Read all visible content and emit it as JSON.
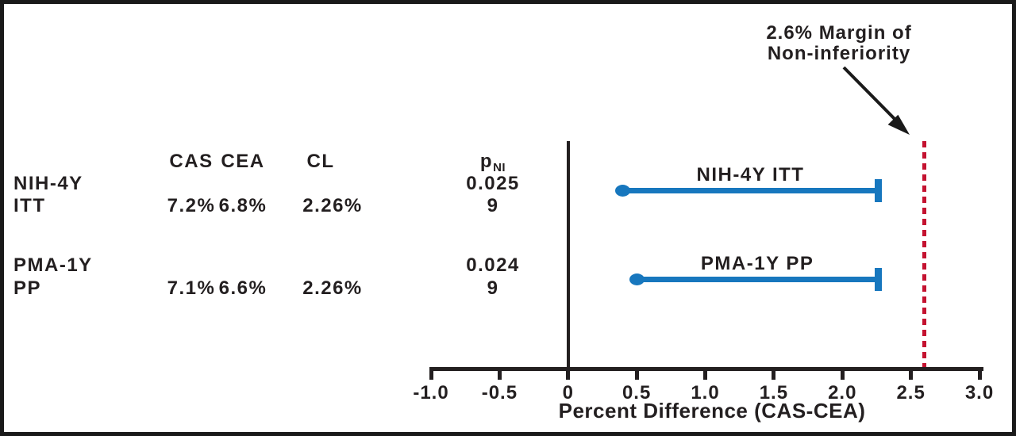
{
  "annotation": {
    "line1": "2.6% Margin of",
    "line2": "Non-inferiority"
  },
  "table": {
    "headers": {
      "cas": "CAS",
      "cea": "CEA",
      "cl": "CL",
      "p_base": "p",
      "p_sub": "NI"
    },
    "rows": [
      {
        "label_line1": "NIH-4Y",
        "label_line2": "ITT",
        "cas": "7.2%",
        "cea": "6.8%",
        "cl": "2.26%",
        "p_line1": "0.025",
        "p_line2": "9"
      },
      {
        "label_line1": "PMA-1Y",
        "label_line2": "PP",
        "cas": "7.1%",
        "cea": "6.6%",
        "cl": "2.26%",
        "p_line1": "0.024",
        "p_line2": "9"
      }
    ]
  },
  "chart_data": {
    "type": "forest",
    "xlabel": "Percent Difference (CAS-CEA)",
    "xlim": [
      -1.0,
      3.0
    ],
    "x_ticks": [
      -1.0,
      -0.5,
      0,
      0.5,
      1.0,
      1.5,
      2.0,
      2.5,
      3.0
    ],
    "x_tick_labels": [
      "-1.0",
      "-0.5",
      "0",
      "0.5",
      "1.0",
      "1.5",
      "2.0",
      "2.5",
      "3.0"
    ],
    "margin_line_x": 2.6,
    "margin_label": "2.6% Margin of Non-inferiority",
    "zero_reference_line": 0,
    "series": [
      {
        "name": "NIH-4Y ITT",
        "point_estimate": 0.4,
        "upper_cl": 2.26,
        "cas_pct": 7.2,
        "cea_pct": 6.8,
        "cl_pct": 2.26,
        "p_ni": 0.0259
      },
      {
        "name": "PMA-1Y PP",
        "point_estimate": 0.5,
        "upper_cl": 2.26,
        "cas_pct": 7.1,
        "cea_pct": 6.6,
        "cl_pct": 2.26,
        "p_ni": 0.0249
      }
    ],
    "legend_position": "labels-above-bars",
    "grid": false,
    "colors": {
      "ci_line": "#1777be",
      "margin_line": "#c41230",
      "axis": "#231f20",
      "text": "#231f20"
    }
  }
}
